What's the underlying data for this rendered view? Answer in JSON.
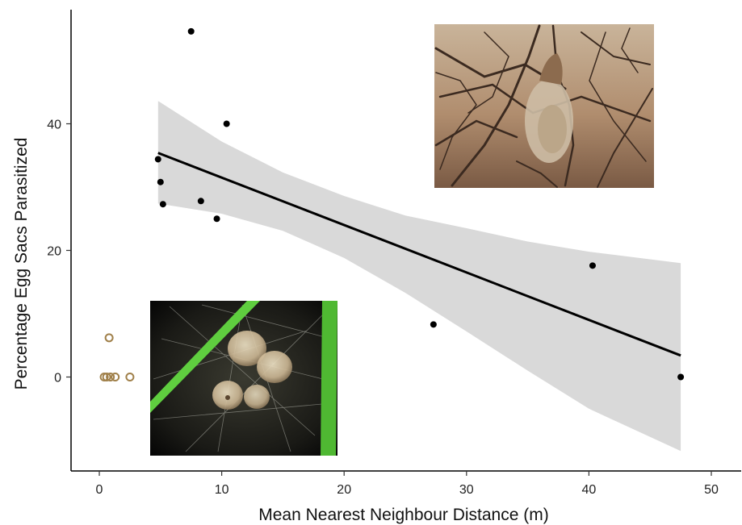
{
  "chart_data": {
    "type": "scatter",
    "xlabel": "Mean Nearest Neighbour Distance (m)",
    "ylabel": "Percentage Egg Sacs Parasitized",
    "xlim": [
      -2.5,
      52.5
    ],
    "ylim": [
      -15,
      58
    ],
    "x_ticks": [
      0,
      10,
      20,
      30,
      40,
      50
    ],
    "y_ticks": [
      0,
      20,
      40
    ],
    "grid": false,
    "legend": "none",
    "series": [
      {
        "marker": "filled-circle",
        "color": "#000000",
        "points": [
          {
            "x": 4.8,
            "y": 34.4
          },
          {
            "x": 5.0,
            "y": 30.8
          },
          {
            "x": 5.2,
            "y": 27.3
          },
          {
            "x": 7.5,
            "y": 54.6
          },
          {
            "x": 8.3,
            "y": 27.8
          },
          {
            "x": 9.6,
            "y": 25.0
          },
          {
            "x": 10.4,
            "y": 40.0
          },
          {
            "x": 27.3,
            "y": 8.3
          },
          {
            "x": 40.3,
            "y": 17.6
          },
          {
            "x": 47.5,
            "y": 0.0
          }
        ]
      },
      {
        "marker": "open-circle",
        "color": "#a0804a",
        "points": [
          {
            "x": 0.4,
            "y": 0.0
          },
          {
            "x": 0.6,
            "y": 0.0
          },
          {
            "x": 0.8,
            "y": 6.2
          },
          {
            "x": 0.9,
            "y": 0.0
          },
          {
            "x": 1.3,
            "y": 0.0
          },
          {
            "x": 2.5,
            "y": 0.0
          }
        ]
      }
    ],
    "regression": {
      "x_start": 4.8,
      "y_start": 35.4,
      "x_end": 47.5,
      "y_end": 3.4,
      "band_color": "#d9d9d9",
      "band": [
        {
          "x": 4.8,
          "lo": 27.4,
          "hi": 43.6
        },
        {
          "x": 10,
          "lo": 25.8,
          "hi": 37.2
        },
        {
          "x": 15,
          "lo": 23.1,
          "hi": 32.3
        },
        {
          "x": 20,
          "lo": 18.8,
          "hi": 28.6
        },
        {
          "x": 25,
          "lo": 13.3,
          "hi": 25.5
        },
        {
          "x": 30,
          "lo": 7.2,
          "hi": 23.5
        },
        {
          "x": 35,
          "lo": 1.0,
          "hi": 21.4
        },
        {
          "x": 40,
          "lo": -5.0,
          "hi": 19.8
        },
        {
          "x": 47.5,
          "lo": -11.7,
          "hi": 18.0
        }
      ]
    }
  },
  "insets": {
    "top_right": {
      "subject": "spider egg sac in dry shrub branches"
    },
    "bottom_left": {
      "subject": "spider egg sacs in silk web between green stems"
    }
  }
}
